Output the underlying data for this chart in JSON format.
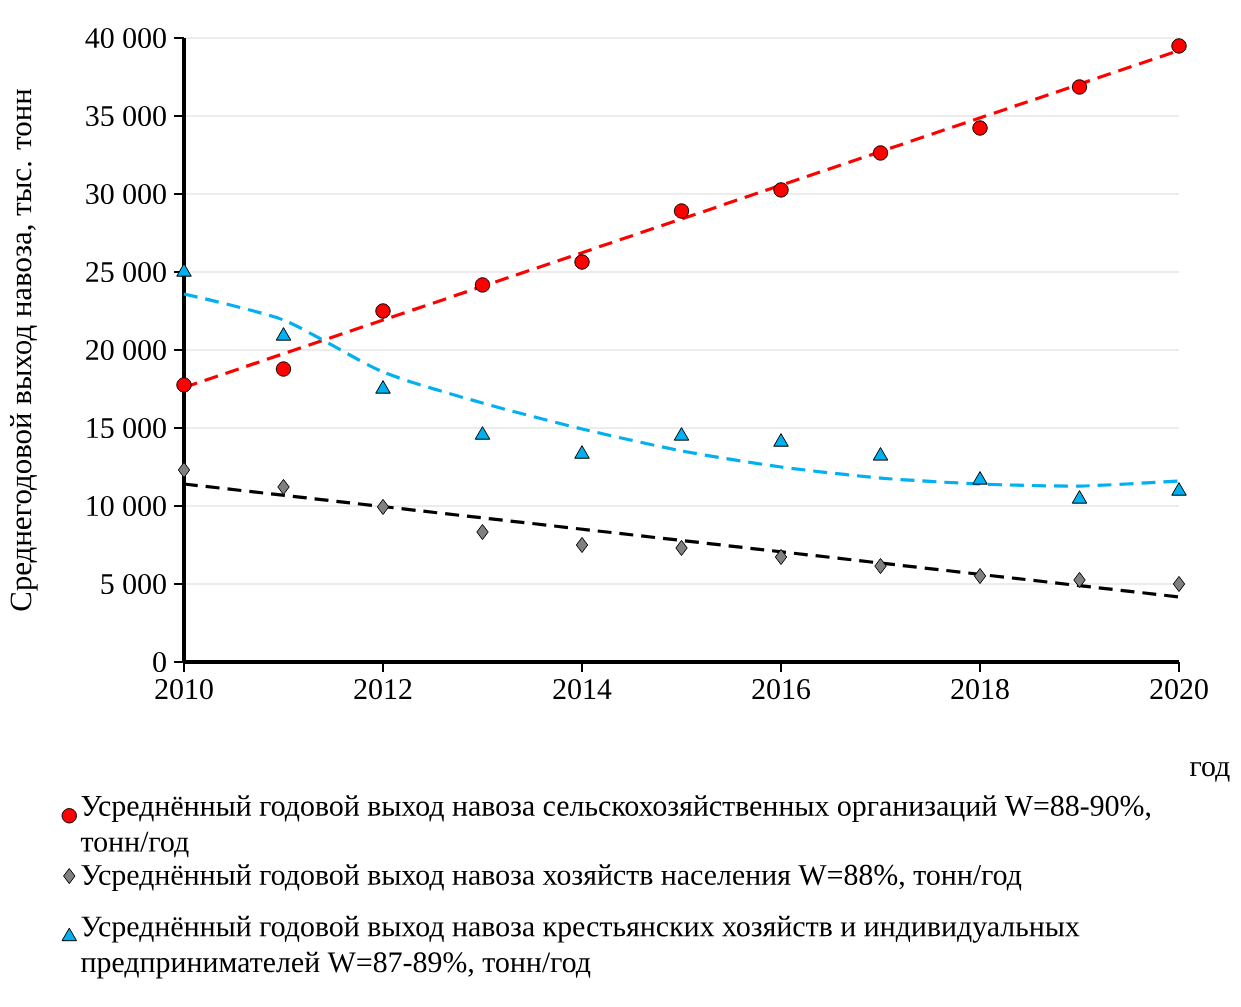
{
  "chart_data": {
    "type": "scatter",
    "xlabel": "год",
    "ylabel": "Среднегодовой выход навоза, тыс. тонн",
    "x": [
      2010,
      2011,
      2012,
      2013,
      2014,
      2015,
      2016,
      2017,
      2018,
      2019,
      2020
    ],
    "xlim": [
      2010,
      2020
    ],
    "xticks": [
      2010,
      2012,
      2014,
      2016,
      2018,
      2020
    ],
    "ylim": [
      0,
      40000
    ],
    "yticks": [
      {
        "value": 0,
        "label": "0"
      },
      {
        "value": 5000,
        "label": "5 000"
      },
      {
        "value": 10000,
        "label": "10 000"
      },
      {
        "value": 15000,
        "label": "15 000"
      },
      {
        "value": 20000,
        "label": "20 000"
      },
      {
        "value": 25000,
        "label": "25 000"
      },
      {
        "value": 30000,
        "label": "30 000"
      },
      {
        "value": 35000,
        "label": "35 000"
      },
      {
        "value": 40000,
        "label": "40 000"
      }
    ],
    "grid": "y",
    "legend": "bottom",
    "series": [
      {
        "name": "Усреднённый годовой выход навоза сельскохозяйственных организаций W=88-90%, тонн/год",
        "color": "#ff0000",
        "marker": "circle",
        "values": [
          17760,
          18780,
          22500,
          24170,
          25640,
          28910,
          30260,
          32630,
          34230,
          36860,
          39490
        ]
      },
      {
        "name": "Усреднённый годовой выход навоза хозяйств населения W=88%, тонн/год",
        "color": "#808080",
        "marker": "diamond",
        "values": [
          12310,
          11220,
          9940,
          8330,
          7500,
          7310,
          6730,
          6150,
          5510,
          5260,
          5000
        ]
      },
      {
        "name": "Усреднённый годовой выход навоза крестьянских хозяйств и индивидуальных предпринимателей W=87-89%, тонн/год",
        "color": "#00b0f0",
        "marker": "triangle",
        "values": [
          25000,
          20900,
          17500,
          14550,
          13330,
          14490,
          14100,
          13210,
          11670,
          10450,
          10960
        ]
      },
      {
        "type": "line",
        "color": "#ff0000",
        "line_style": "dashed",
        "marker": "none",
        "x": [
          2010,
          2020
        ],
        "values": [
          17600,
          39200
        ]
      },
      {
        "type": "line",
        "color": "#000000",
        "line_style": "dashed",
        "marker": "none",
        "x": [
          2010,
          2020
        ],
        "values": [
          11410,
          4170
        ]
      },
      {
        "type": "line",
        "color": "#00b0f0",
        "line_style": "dashed",
        "marker": "none",
        "x": [
          2010,
          2011,
          2012,
          2013,
          2014,
          2015,
          2016,
          2017,
          2018,
          2019,
          2020
        ],
        "values": [
          23590,
          21920,
          18590,
          16600,
          14940,
          13530,
          12500,
          11790,
          11410,
          11280,
          11600
        ]
      }
    ]
  }
}
